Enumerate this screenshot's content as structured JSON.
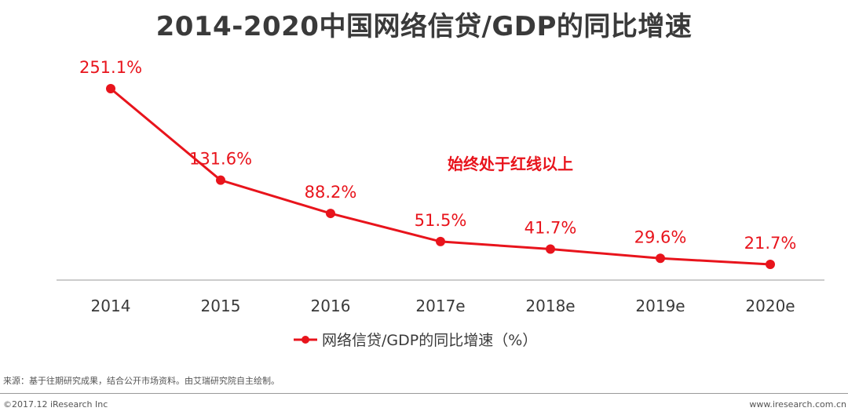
{
  "chart_data": {
    "type": "line",
    "title": "2014-2020中国网络信贷/GDP的同比增速",
    "categories": [
      "2014",
      "2015",
      "2016",
      "2017e",
      "2018e",
      "2019e",
      "2020e"
    ],
    "series": [
      {
        "name": "网络信贷/GDP的同比增速（%）",
        "values": [
          251.1,
          131.6,
          88.2,
          51.5,
          41.7,
          29.6,
          21.7
        ],
        "labels": [
          "251.1%",
          "131.6%",
          "88.2%",
          "51.5%",
          "41.7%",
          "29.6%",
          "21.7%"
        ],
        "color": "#e8141c"
      }
    ],
    "annotation": "始终处于红线以上",
    "ylim": [
      0,
      270
    ],
    "grid": false,
    "legend": "bottom-center"
  },
  "footer": {
    "source": "来源：基于往期研究成果，结合公开市场资料。由艾瑞研究院自主绘制。",
    "copyright": "©2017.12 iResearch Inc",
    "website": "www.iresearch.com.cn"
  },
  "colors": {
    "line": "#e8141c",
    "text": "#3a3a3a",
    "axis": "#9a9a9a"
  }
}
